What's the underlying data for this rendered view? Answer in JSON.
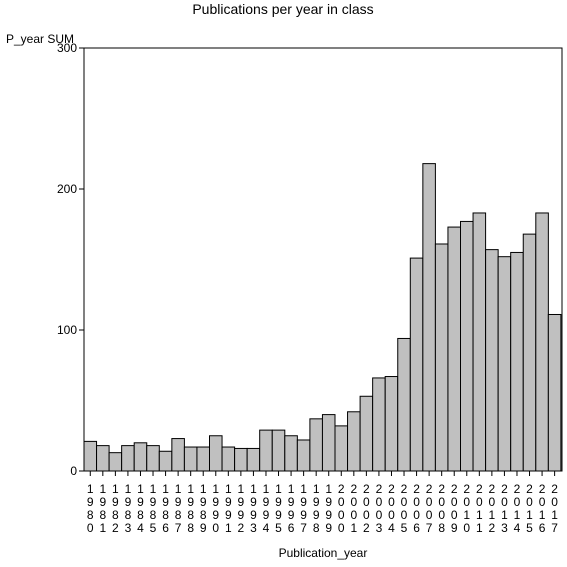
{
  "chart_data": {
    "type": "bar",
    "title": "Publications per year in class",
    "xlabel": "Publication_year",
    "ylabel": "P_year SUM",
    "ylim": [
      0,
      300
    ],
    "yticks": [
      0,
      100,
      200,
      300
    ],
    "grid": false,
    "colors": {
      "bar_fill": "#c0c0c0",
      "bar_stroke": "#000000",
      "background": "#ffffff"
    },
    "categories": [
      "1980",
      "1981",
      "1982",
      "1983",
      "1984",
      "1985",
      "1986",
      "1987",
      "1988",
      "1989",
      "1990",
      "1991",
      "1992",
      "1993",
      "1994",
      "1995",
      "1996",
      "1997",
      "1998",
      "1999",
      "2000",
      "2001",
      "2002",
      "2003",
      "2004",
      "2005",
      "2006",
      "2007",
      "2008",
      "2009",
      "2010",
      "2011",
      "2012",
      "2013",
      "2014",
      "2015",
      "2016",
      "2017"
    ],
    "values": [
      21,
      18,
      13,
      18,
      20,
      18,
      14,
      23,
      17,
      17,
      25,
      17,
      16,
      16,
      29,
      29,
      25,
      22,
      37,
      40,
      32,
      42,
      53,
      66,
      67,
      94,
      151,
      218,
      161,
      173,
      177,
      183,
      157,
      152,
      155,
      168,
      183,
      111
    ]
  }
}
